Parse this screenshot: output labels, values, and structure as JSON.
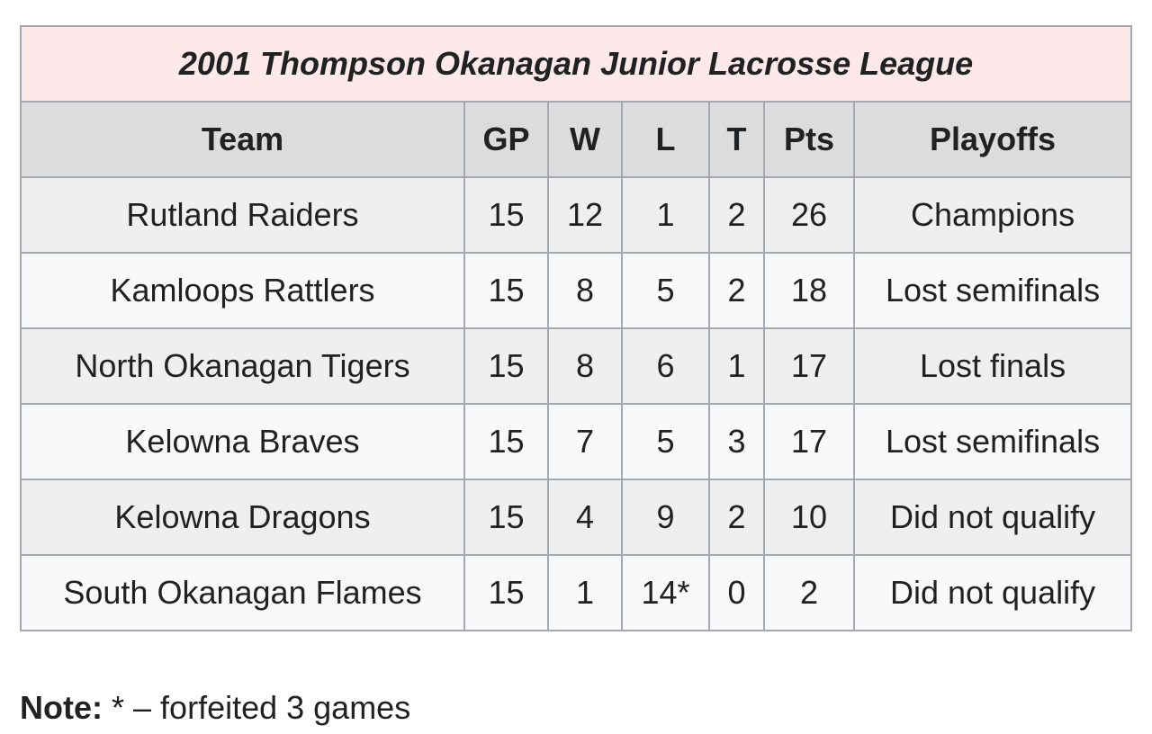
{
  "table": {
    "title": "2001 Thompson Okanagan Junior Lacrosse League",
    "header": [
      "Team",
      "GP",
      "W",
      "L",
      "T",
      "Pts",
      "Playoffs"
    ],
    "rows": [
      [
        "Rutland Raiders",
        15,
        12,
        1,
        2,
        26,
        "Champions"
      ],
      [
        "Kamloops Rattlers",
        15,
        8,
        5,
        2,
        18,
        "Lost semifinals"
      ],
      [
        "North Okanagan Tigers",
        15,
        8,
        6,
        1,
        17,
        "Lost finals"
      ],
      [
        "Kelowna Braves",
        15,
        7,
        5,
        3,
        17,
        "Lost semifinals"
      ],
      [
        "Kelowna Dragons",
        15,
        4,
        9,
        2,
        10,
        "Did not qualify"
      ],
      [
        "South Okanagan Flames",
        15,
        1,
        "14*",
        0,
        2,
        "Did not qualify"
      ]
    ]
  },
  "note": {
    "label": "Note:",
    "text": "* – forfeited 3 games"
  }
}
